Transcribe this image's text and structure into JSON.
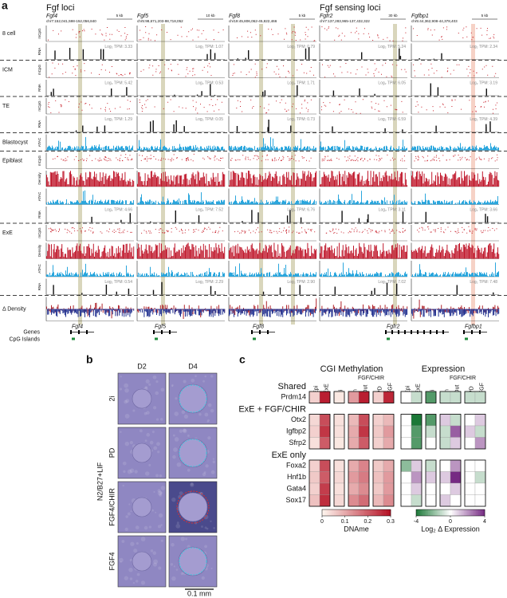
{
  "panel_a": {
    "label": "a",
    "headers": [
      "Fgf loci",
      "Fgf sensing loci"
    ],
    "loci": [
      {
        "gene": "Fgf4",
        "coords": "chr7:152,041,598-152,056,840",
        "scale": "5 kb"
      },
      {
        "gene": "Fgf5",
        "coords": "chr5:98,671,203-98,718,052",
        "scale": "10 kb"
      },
      {
        "gene": "Fgf8",
        "coords": "chr19:45,806,062-45,822,466",
        "scale": "5 kb"
      },
      {
        "gene": "Fgfr2",
        "coords": "chr7:137,283,965-137,432,322",
        "scale": "30 kb"
      },
      {
        "gene": "Fgfbp1",
        "coords": "chr5:44,362,908-44,378,403",
        "scale": "5 kb"
      }
    ],
    "groups": [
      {
        "name": "8 cell",
        "tracks": [
          {
            "label": "mCpG"
          },
          {
            "label": "RNA",
            "tpm": [
              "Log₂ TPM: 3.33",
              "Log₂ TPM: 1.07",
              "Log₂ TPM: 0.79",
              "Log₂ TPM: 5.24",
              "Log₂ TPM: 2.34"
            ]
          }
        ]
      },
      {
        "name": "ICM",
        "tracks": [
          {
            "label": "mCpG"
          },
          {
            "label": "RNA",
            "tpm": [
              "Log₂ TPM: 5.42",
              "Log₂ TPM: 0.53",
              "Log₂ TPM: 1.71",
              "Log₂ TPM: 6.05",
              "Log₂ TPM: 3.19"
            ]
          }
        ]
      },
      {
        "name": "TE",
        "tracks": [
          {
            "label": "mCpG"
          },
          {
            "label": "RNA",
            "tpm": [
              "Log₂ TPM: 1.29",
              "Log₂ TPM: 0.05",
              "Log₂ TPM: 0.73",
              "Log₂ TPM: 6.59",
              "Log₂ TPM: 4.39"
            ]
          }
        ]
      },
      {
        "name": "Blastocyst",
        "tracks": [
          {
            "label": "ATAC"
          }
        ]
      },
      {
        "name": "Epiblast",
        "tracks": [
          {
            "label": "mCpG"
          },
          {
            "label": "Density"
          },
          {
            "label": "ATAC"
          },
          {
            "label": "RNA",
            "tpm": [
              "Log₂ TPM: 4.66",
              "Log₂ TPM: 7.52",
              "Log₂ TPM: 6.76",
              "Log₂ TPM: 3.11",
              "Log₂ TPM: 3.66"
            ]
          }
        ]
      },
      {
        "name": "ExE",
        "tracks": [
          {
            "label": "mCpG"
          },
          {
            "label": "Density"
          },
          {
            "label": "ATAC"
          },
          {
            "label": "RNA",
            "tpm": [
              "Log₂ TPM: 0.54",
              "Log₂ TPM: 2.29",
              "Log₂ TPM: 2.90",
              "Log₂ TPM: 7.02",
              "Log₂ TPM: 7.48"
            ]
          }
        ]
      }
    ],
    "delta_label": "Δ Density",
    "genes_label": "Genes",
    "cpg_label": "CpG Islands"
  },
  "panel_b": {
    "label": "b",
    "columns": [
      "D2",
      "D4"
    ],
    "rows": [
      "2i",
      "PD",
      "FGF4/CHIR",
      "FGF4"
    ],
    "group": "N2/B27+LIF",
    "scale": "0.1 mm"
  },
  "panel_c": {
    "label": "c",
    "meth_title": "CGI Methylation",
    "expr_title": "Expression",
    "sub": "FGF/CHIR",
    "columns": [
      "Epi",
      "ExE",
      "2i",
      "In",
      "Out",
      "PD",
      "FGF"
    ],
    "sections": [
      {
        "name": "Shared",
        "genes": [
          "Prdm14"
        ],
        "meth": [
          [
            0.05,
            0.28,
            0.02,
            0.12,
            0.28,
            0.05,
            0.27
          ]
        ],
        "expr": [
          [
            0,
            -1,
            -3,
            -1,
            -1,
            -1,
            -1
          ]
        ]
      },
      {
        "name": "ExE + FGF/CHIR",
        "genes": [
          "Otx2",
          "Igfbp2",
          "Sfrp2"
        ],
        "meth": [
          [
            0.04,
            0.22,
            0.03,
            0.08,
            0.22,
            0.05,
            0.08
          ],
          [
            0.05,
            0.25,
            0.03,
            0.1,
            0.25,
            0.06,
            0.12
          ],
          [
            0.03,
            0.2,
            0.02,
            0.1,
            0.2,
            0.05,
            0.1
          ]
        ],
        "expr": [
          [
            0,
            -4,
            -3,
            1,
            -1,
            0,
            1
          ],
          [
            0,
            -3,
            -1,
            -1,
            3,
            1,
            -1
          ],
          [
            0,
            -3,
            0,
            -1,
            1,
            0,
            2
          ]
        ]
      },
      {
        "name": "ExE only",
        "genes": [
          "Foxa2",
          "Hnf1b",
          "Gata4",
          "Sox17"
        ],
        "meth": [
          [
            0.05,
            0.22,
            0.03,
            0.1,
            0.15,
            0.06,
            0.1
          ],
          [
            0.06,
            0.2,
            0.04,
            0.12,
            0.16,
            0.07,
            0.12
          ],
          [
            0.05,
            0.24,
            0.03,
            0.1,
            0.14,
            0.06,
            0.12
          ],
          [
            0.07,
            0.26,
            0.04,
            0.14,
            0.18,
            0.08,
            0.14
          ]
        ],
        "expr": [
          [
            -2,
            1,
            -1,
            0,
            2,
            0,
            0
          ],
          [
            0,
            2,
            1,
            1,
            4,
            0,
            -1
          ],
          [
            0,
            1,
            0,
            0,
            1,
            0,
            0
          ],
          [
            0,
            -1,
            0,
            1,
            0,
            0,
            0
          ]
        ]
      }
    ],
    "meth_bar": {
      "label": "DNAme",
      "lim": [
        0,
        0.3
      ],
      "ticks": [
        0,
        0.1,
        0.2,
        0.3
      ]
    },
    "expr_bar": {
      "label": "Log₂ Δ Expression",
      "lim": [
        -4,
        4
      ],
      "ticks": [
        -4,
        0,
        4
      ]
    }
  }
}
